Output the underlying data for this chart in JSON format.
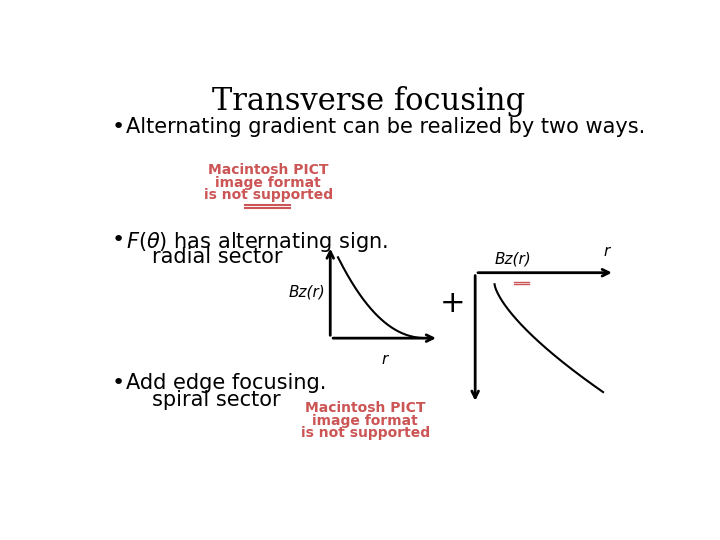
{
  "title": "Transverse focusing",
  "title_fontsize": 22,
  "background_color": "#ffffff",
  "text_color": "#000000",
  "bullet1": "Alternating gradient can be realized by two ways.",
  "pict_color": "#cc5555",
  "pict_text1": "Macintosh PICT",
  "pict_text2": "image format",
  "pict_text3": "is not supported",
  "bz_label": "Bz(r)",
  "r_label": "r",
  "plus_sign": "+",
  "font_size_body": 15,
  "font_size_label": 11,
  "font_size_small": 9
}
